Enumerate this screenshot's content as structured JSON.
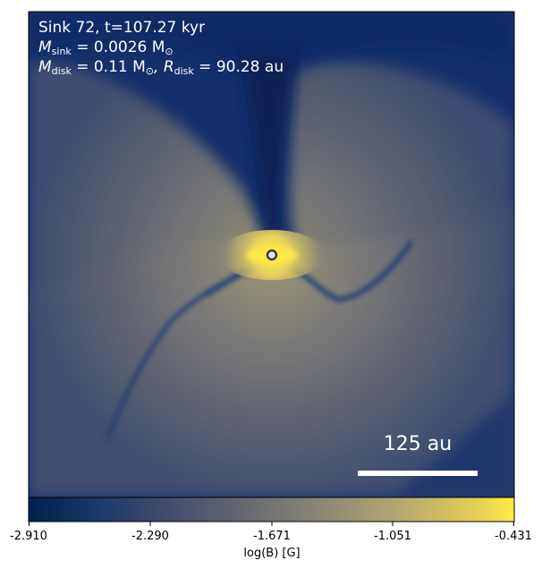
{
  "annotation": {
    "line1": "Sink 72, t=107.27 kyr",
    "sink_mass_symbol": "M",
    "sink_mass_subscript": "sink",
    "sink_mass_value": " = 0.0026 M",
    "sink_mass_unit_sub": "⊙",
    "disk_mass_symbol": "M",
    "disk_mass_subscript": "disk",
    "disk_mass_value": " = 0.11 M",
    "disk_mass_unit_sub": "⊙",
    "disk_radius_symbol": ", R",
    "disk_radius_subscript": "disk",
    "disk_radius_value": " = 90.28 au"
  },
  "scale_bar": {
    "label": "125 au"
  },
  "colorbar": {
    "label": "log(B) [G]",
    "ticks": [
      "-2.910",
      "-2.290",
      "-1.671",
      "-1.051",
      "-0.431"
    ],
    "colormap": [
      "#00204d",
      "#233e6c",
      "#575c6d",
      "#7c7b78",
      "#a59c74",
      "#d3c064",
      "#ffea46"
    ]
  }
}
